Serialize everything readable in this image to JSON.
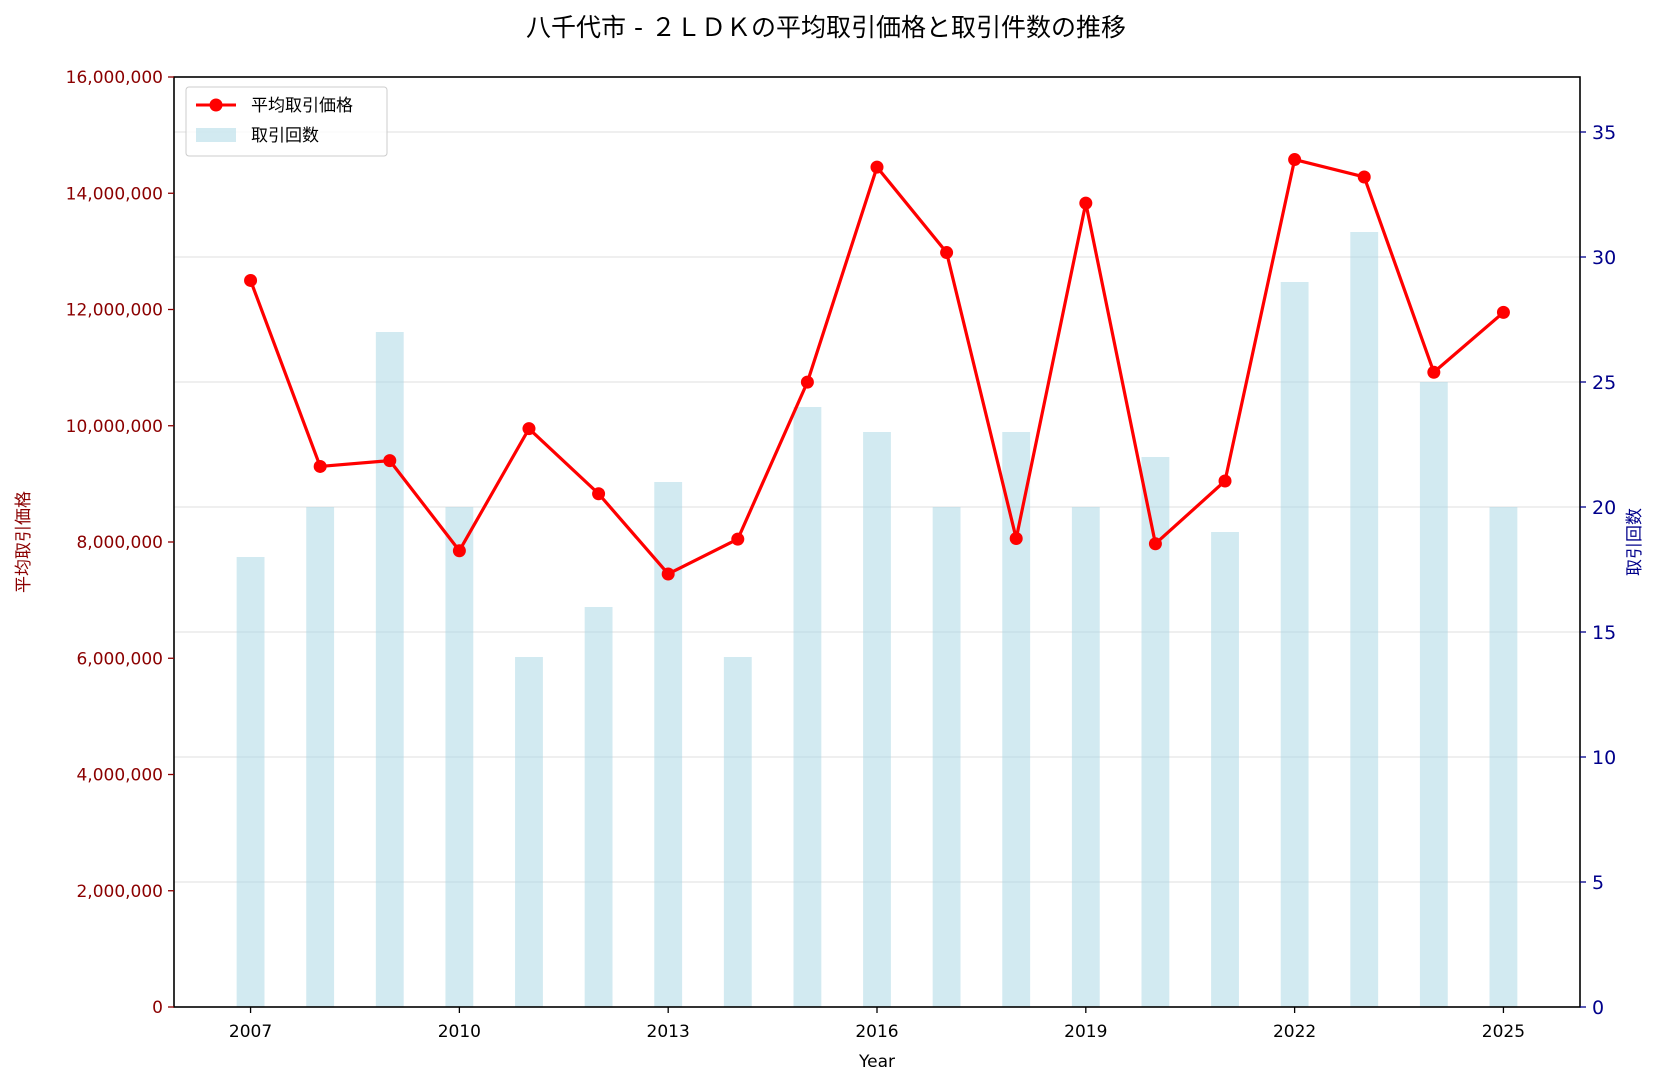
{
  "chart_data": {
    "type": "bar",
    "title": "八千代市 - ２ＬＤＫの平均取引価格と取引件数の推移",
    "xlabel": "Year",
    "ylabel_left": "平均取引価格",
    "ylabel_right": "取引回数",
    "x": [
      2007,
      2008,
      2009,
      2010,
      2011,
      2012,
      2013,
      2014,
      2015,
      2016,
      2017,
      2018,
      2019,
      2020,
      2021,
      2022,
      2023,
      2024,
      2025
    ],
    "x_ticks": [
      "2007",
      "2010",
      "2013",
      "2016",
      "2019",
      "2022",
      "2025"
    ],
    "xlim": [
      2005.9,
      2026.1
    ],
    "y_left_ticks": [
      "0",
      "2,000,000",
      "4,000,000",
      "6,000,000",
      "8,000,000",
      "10,000,000",
      "12,000,000",
      "14,000,000",
      "16,000,000"
    ],
    "y_right_ticks": [
      "0",
      "5",
      "10",
      "15",
      "20",
      "25",
      "30",
      "35"
    ],
    "ylim_left": [
      0,
      16000000
    ],
    "ylim_right": [
      0,
      37.2
    ],
    "series": [
      {
        "name": "平均取引価格",
        "axis": "left",
        "kind": "line",
        "color": "#ff0000",
        "values": [
          12500000,
          9300000,
          9400000,
          7850000,
          9950000,
          8830000,
          7450000,
          8050000,
          10750000,
          14450000,
          12980000,
          8060000,
          13830000,
          7970000,
          9050000,
          14580000,
          14280000,
          10920000,
          11950000
        ]
      },
      {
        "name": "取引回数",
        "axis": "right",
        "kind": "bar",
        "color": "#add8e6",
        "values": [
          18,
          20,
          27,
          20,
          14,
          16,
          21,
          14,
          24,
          23,
          20,
          23,
          20,
          22,
          19,
          29,
          31,
          25,
          20
        ]
      }
    ],
    "grid": true,
    "legend_position": "top-left",
    "left_axis_color": "#8b0000",
    "right_axis_color": "#00008b"
  }
}
